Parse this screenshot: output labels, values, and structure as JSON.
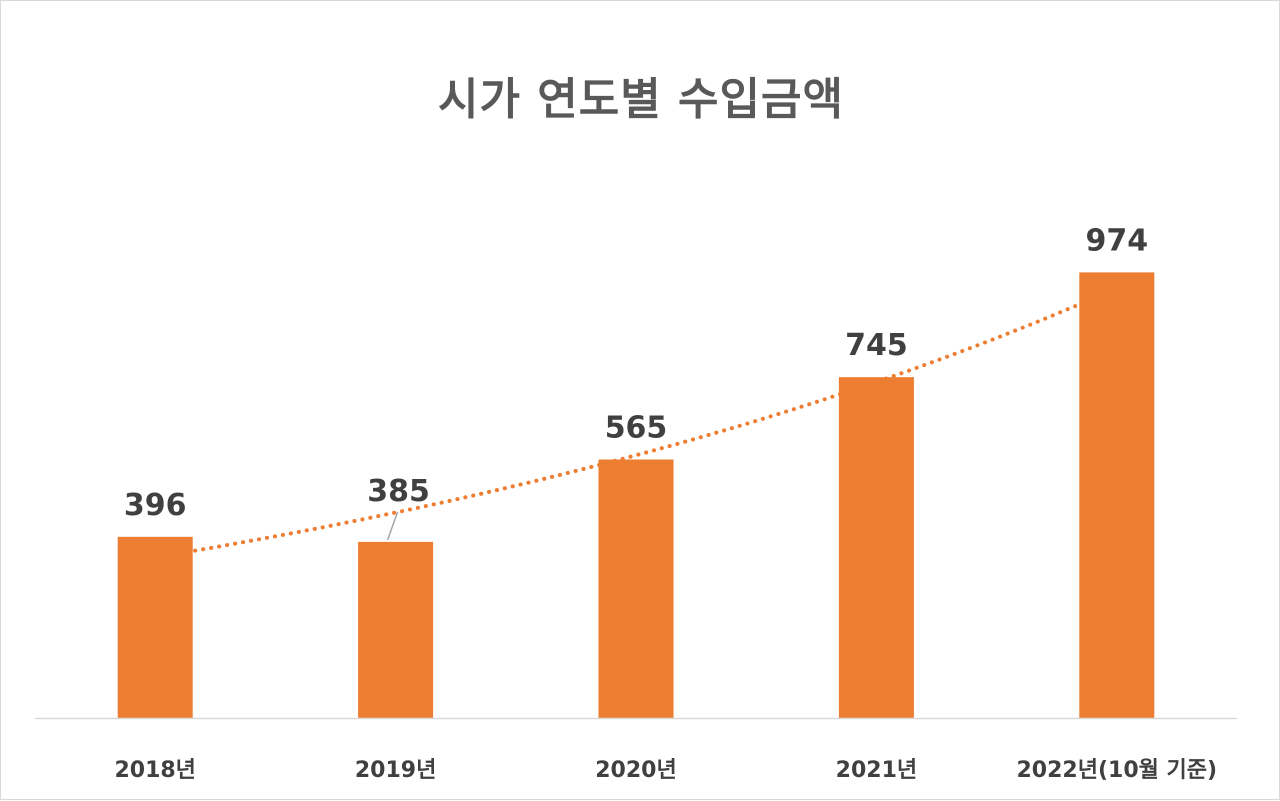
{
  "chart_data": {
    "type": "bar",
    "title": "시가 연도별 수입금액",
    "categories": [
      "2018년",
      "2019년",
      "2020년",
      "2021년",
      "2022년(10월 기준)"
    ],
    "series": [
      {
        "values": [
          396,
          385,
          565,
          745,
          974
        ]
      }
    ],
    "ylim": [
      0,
      1100
    ],
    "grid": false,
    "legend": "none",
    "trendline": {
      "type": "exponential",
      "style": "dotted"
    },
    "bar_color": "#ED7D31",
    "trendline_color": "#ED7D31"
  }
}
